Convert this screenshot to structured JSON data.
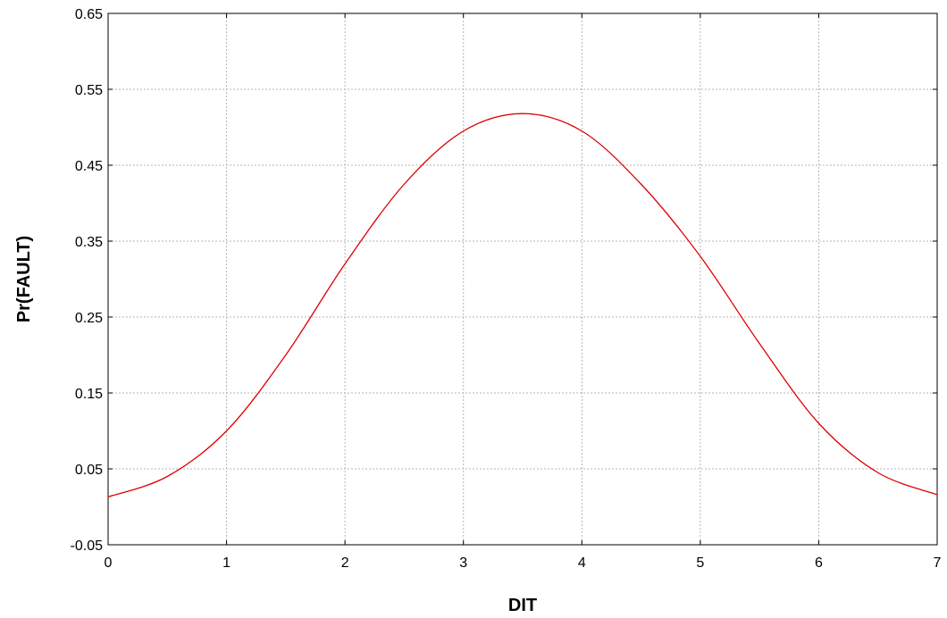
{
  "chart_data": {
    "type": "line",
    "xlabel": "DIT",
    "ylabel": "Pr(FAULT)",
    "xlim": [
      0,
      7
    ],
    "ylim": [
      -0.05,
      0.65
    ],
    "xticks": [
      0,
      1,
      2,
      3,
      4,
      5,
      6,
      7
    ],
    "yticks": [
      -0.05,
      0.05,
      0.15,
      0.25,
      0.35,
      0.45,
      0.55,
      0.65
    ],
    "xtick_labels": [
      "0",
      "1",
      "2",
      "3",
      "4",
      "5",
      "6",
      "7"
    ],
    "ytick_labels": [
      "-0.05",
      "0.05",
      "0.15",
      "0.25",
      "0.35",
      "0.45",
      "0.55",
      "0.65"
    ],
    "grid": true,
    "series": [
      {
        "color": "#e00000",
        "x": [
          0,
          0.5,
          1,
          1.5,
          2,
          2.5,
          3,
          3.5,
          4,
          4.5,
          5,
          5.5,
          6,
          6.5,
          7
        ],
        "y": [
          0.013,
          0.04,
          0.1,
          0.2,
          0.32,
          0.425,
          0.495,
          0.518,
          0.495,
          0.425,
          0.33,
          0.215,
          0.11,
          0.045,
          0.016
        ]
      }
    ]
  }
}
